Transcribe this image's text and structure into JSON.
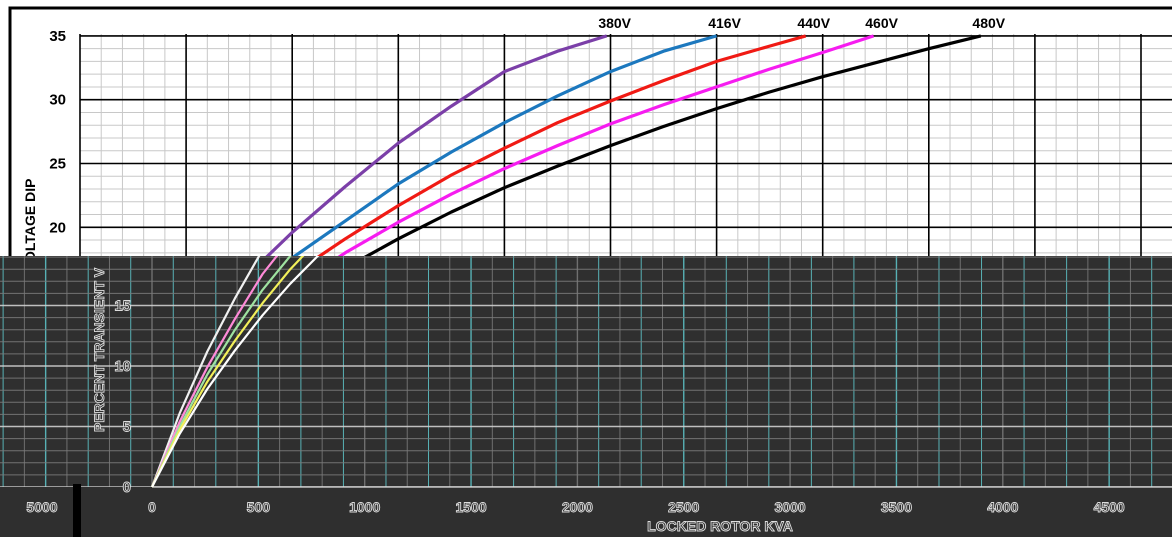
{
  "chart_data": {
    "type": "line",
    "xlabel": "LOCKED ROTOR KVA",
    "ylabel_top": "OLTAGE DIP",
    "ylabel_bottom": "PERCENT TRANSIENT V",
    "xlim": [
      0,
      4700
    ],
    "ylim": [
      0,
      35
    ],
    "x_ticks": [
      0,
      500,
      1000,
      1500,
      2000,
      2500,
      3000,
      3500,
      4000,
      4500
    ],
    "x_tick_labels": [
      "0",
      "500",
      "1000",
      "1500",
      "2000",
      "2500",
      "3000",
      "3500",
      "4000",
      "4500"
    ],
    "extra_x_tick_label": "5000",
    "y_ticks": [
      0,
      5,
      10,
      15,
      20,
      25,
      30,
      35
    ],
    "y_tick_labels": [
      "0",
      "5",
      "10",
      "15",
      "20",
      "25",
      "30",
      "35"
    ],
    "grid": true,
    "series": [
      {
        "name": "380V",
        "color": "#7b3fa8",
        "x": [
          0,
          250,
          500,
          750,
          1000,
          1250,
          1500,
          1750,
          2000,
          2250,
          2482
        ],
        "y": [
          0,
          6.1,
          11.2,
          15.6,
          19.6,
          23.2,
          26.6,
          29.5,
          32.2,
          33.8,
          35
        ]
      },
      {
        "name": "416V",
        "color": "#1c78be",
        "x": [
          0,
          250,
          500,
          750,
          1000,
          1250,
          1500,
          1750,
          2000,
          2250,
          2500,
          2750,
          3000
        ],
        "y": [
          0,
          5.4,
          9.9,
          13.9,
          17.6,
          20.5,
          23.4,
          25.9,
          28.2,
          30.3,
          32.2,
          33.8,
          35
        ]
      },
      {
        "name": "440V",
        "color": "#f01a14",
        "x": [
          0,
          250,
          500,
          750,
          1000,
          1250,
          1500,
          1750,
          2000,
          2250,
          2500,
          2750,
          3000,
          3250,
          3420
        ],
        "y": [
          0,
          5.0,
          9.3,
          13.0,
          16.3,
          19.1,
          21.7,
          24.1,
          26.2,
          28.2,
          29.9,
          31.5,
          33.0,
          34.2,
          35
        ]
      },
      {
        "name": "460V",
        "color": "#f61cf0",
        "x": [
          0,
          250,
          500,
          750,
          1000,
          1250,
          1500,
          1750,
          2000,
          2250,
          2500,
          2750,
          3000,
          3250,
          3500,
          3740
        ],
        "y": [
          0,
          4.7,
          8.7,
          12.1,
          15.2,
          18.0,
          20.4,
          22.6,
          24.6,
          26.4,
          28.1,
          29.6,
          31.0,
          32.4,
          33.7,
          35
        ]
      },
      {
        "name": "480V",
        "color": "#000000",
        "x": [
          0,
          250,
          500,
          750,
          1000,
          1250,
          1500,
          1750,
          2000,
          2250,
          2500,
          2750,
          3000,
          3250,
          3500,
          3750,
          4000,
          4245
        ],
        "y": [
          0,
          4.4,
          8.1,
          11.3,
          14.2,
          16.8,
          19.1,
          21.2,
          23.1,
          24.8,
          26.4,
          27.9,
          29.3,
          30.6,
          31.8,
          32.9,
          34.0,
          35
        ]
      }
    ]
  },
  "colors": {
    "background": "#ffffff",
    "dark_band": "#2f2f2f",
    "dark_band_line": "#7a7a7a",
    "dark_band_accent": "#5ec8cc",
    "minor_grid": "#c8c8c8",
    "major_grid": "#000000"
  }
}
